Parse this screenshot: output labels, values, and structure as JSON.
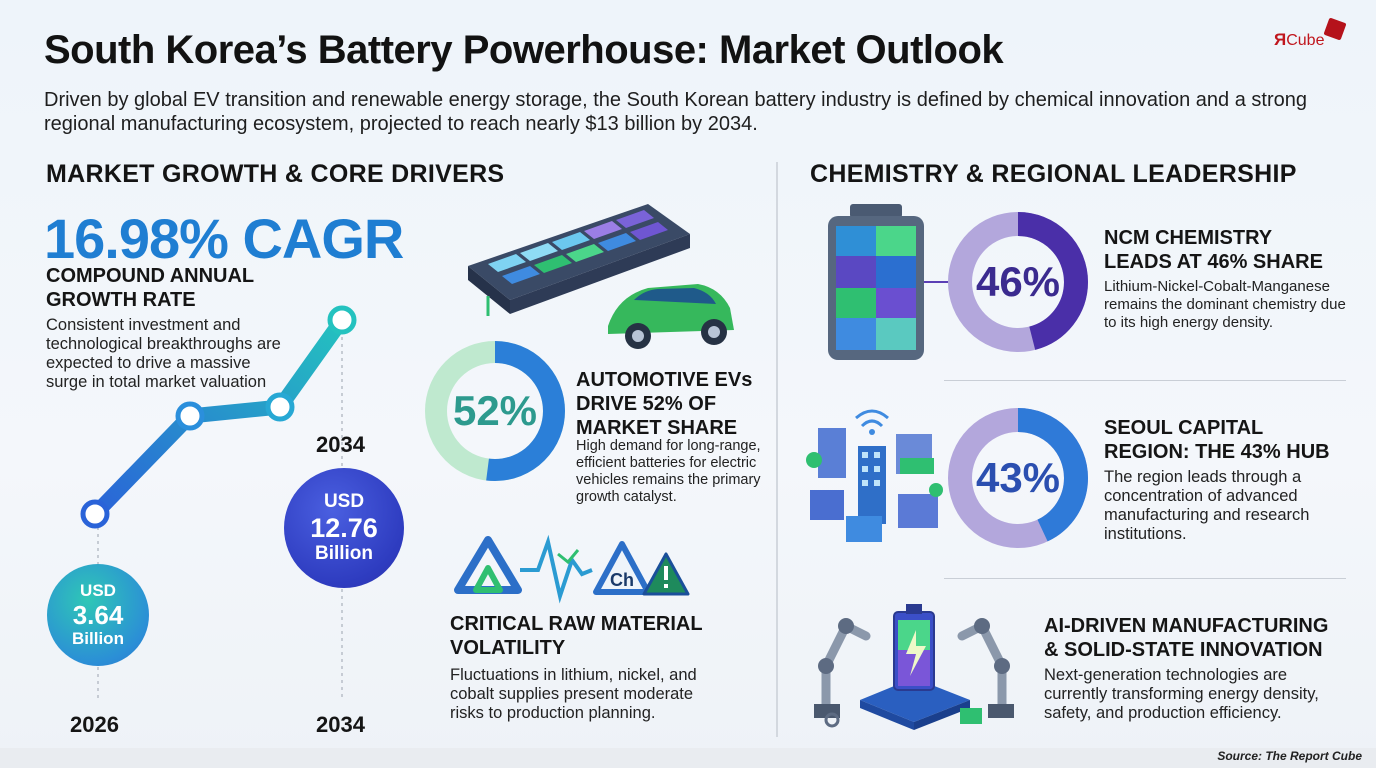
{
  "title": "South Korea’s Battery Powerhouse: Market Outlook",
  "subtitle": "Driven by global EV transition and renewable energy storage, the South Korean battery industry is defined by chemical innovation and a strong regional manufacturing ecosystem, projected to reach nearly $13 billion by 2034.",
  "logo": {
    "r": "Я",
    "text": "Cube"
  },
  "left_section": {
    "heading": "MARKET GROWTH & CORE DRIVERS",
    "cagr": "16.98% CAGR",
    "cagr_label": "COMPOUND ANNUAL GROWTH RATE",
    "cagr_desc": "Consistent investment and technological breakthroughs are expected to drive a massive surge in total market valuation",
    "start": {
      "currency": "USD",
      "value": "3.64",
      "unit": "Billion",
      "year": "2026"
    },
    "end": {
      "currency": "USD",
      "value": "12.76",
      "unit": "Billion",
      "year": "2034",
      "year_top": "2034"
    },
    "automotive": {
      "percent": "52%",
      "fraction": 0.52,
      "title": "AUTOMOTIVE EVs DRIVE 52% OF MARKET SHARE",
      "desc": "High demand for long-range, efficient batteries for electric vehicles remains the primary growth catalyst."
    },
    "materials": {
      "icon_text": "Ch",
      "title": "CRITICAL RAW MATERIAL VOLATILITY",
      "desc": "Fluctuations in lithium, nickel, and cobalt supplies present moderate risks to production planning."
    }
  },
  "right_section": {
    "heading": "CHEMISTRY & REGIONAL LEADERSHIP",
    "ncm": {
      "percent": "46%",
      "fraction": 0.46,
      "title": "NCM CHEMISTRY LEADS AT 46% SHARE",
      "desc": "Lithium-Nickel-Cobalt-Manganese remains the dominant chemistry due to its high energy density."
    },
    "seoul": {
      "percent": "43%",
      "fraction": 0.43,
      "title": "SEOUL CAPITAL REGION: THE 43% HUB",
      "desc": "The region leads through a concentration of advanced manufacturing and research institutions."
    },
    "ai": {
      "title": "AI-DRIVEN MANUFACTURING & SOLID-STATE INNOVATION",
      "desc": "Next-generation technologies are currently transforming energy density, safety, and production efficiency."
    }
  },
  "source": "Source: The Report Cube",
  "colors": {
    "blue": "#1f7ed2",
    "green": "#2fbf71",
    "purple": "#5b3fb5",
    "lavender": "#a99ad8"
  }
}
